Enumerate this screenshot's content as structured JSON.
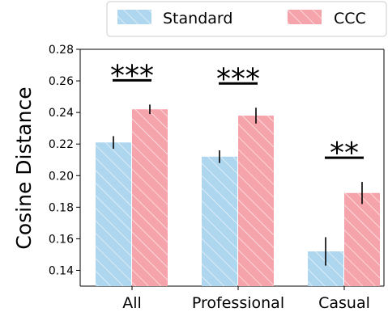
{
  "chart_data": {
    "type": "bar",
    "categories": [
      "All",
      "Professional",
      "Casual"
    ],
    "series": [
      {
        "name": "Standard",
        "values": [
          0.221,
          0.212,
          0.152
        ],
        "errors": [
          0.004,
          0.004,
          0.009
        ],
        "color": "#aed6ee",
        "hatch": "white-diagonal"
      },
      {
        "name": "CCC",
        "values": [
          0.242,
          0.238,
          0.189
        ],
        "errors": [
          0.003,
          0.005,
          0.007
        ],
        "color": "#f6a4ac",
        "hatch": "white-diagonal"
      }
    ],
    "significance": [
      "***",
      "***",
      "**"
    ],
    "ylabel": "Cosine Distance",
    "xlabel": "",
    "title": "",
    "ylim": [
      0.13,
      0.28
    ],
    "yticks": [
      0.14,
      0.16,
      0.18,
      0.2,
      0.22,
      0.24,
      0.26,
      0.28
    ],
    "ytick_labels": [
      "0.14",
      "0.16",
      "0.18",
      "0.20",
      "0.22",
      "0.24",
      "0.26",
      "0.28"
    ],
    "grid": false,
    "legend": {
      "placement": "top-center",
      "columns": 2
    }
  }
}
